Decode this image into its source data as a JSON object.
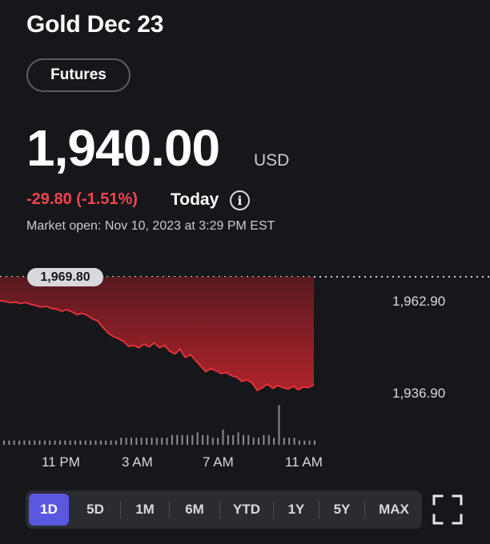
{
  "header": {
    "title": "Gold Dec 23",
    "badge": "Futures"
  },
  "quote": {
    "price": "1,940.00",
    "currency": "USD",
    "change": "-29.80 (-1.51%)",
    "period": "Today",
    "market_status": "Market open: Nov 10, 2023 at 3:29 PM EST"
  },
  "chart": {
    "prev_close_label": "1,969.80",
    "y_labels": [
      "1,962.90",
      "1,936.90"
    ],
    "x_labels": [
      "11 PM",
      "3 AM",
      "7 AM",
      "11 AM"
    ],
    "colors": {
      "line": "#e0323b",
      "volume": "#8a8d93"
    }
  },
  "chart_data": {
    "type": "area",
    "title": "",
    "reference_line": 1969.8,
    "y_ticks": [
      1962.9,
      1936.9
    ],
    "x_ticks": [
      "11 PM",
      "3 AM",
      "7 AM",
      "11 AM"
    ],
    "ylim": [
      1930,
      1972
    ],
    "series": [
      {
        "values": [
          1963.4,
          1963.2,
          1962.8,
          1963.0,
          1962.6,
          1962.9,
          1962.3,
          1962.0,
          1961.6,
          1961.8,
          1961.2,
          1961.0,
          1960.4,
          1960.8,
          1960.2,
          1959.4,
          1959.8,
          1959.2,
          1958.2,
          1957.6,
          1955.8,
          1954.2,
          1953.2,
          1952.6,
          1951.8,
          1950.4,
          1950.6,
          1950.0,
          1951.0,
          1950.2,
          1951.4,
          1950.0,
          1950.6,
          1949.0,
          1948.2,
          1949.6,
          1947.2,
          1948.0,
          1946.4,
          1944.8,
          1943.2,
          1944.0,
          1943.4,
          1942.6,
          1942.9,
          1942.0,
          1941.6,
          1940.4,
          1940.8,
          1940.0,
          1937.8,
          1938.6,
          1939.6,
          1938.4,
          1939.2,
          1938.6,
          1938.2,
          1939.0,
          1938.0,
          1938.8,
          1938.6,
          1939.4
        ]
      }
    ],
    "volume": [
      1,
      1,
      1,
      1,
      1,
      1,
      1,
      1,
      1,
      1,
      1,
      1,
      1,
      1,
      1,
      1,
      1,
      1,
      1,
      1,
      1,
      1,
      1,
      2,
      2,
      2,
      2,
      2,
      2,
      2,
      2,
      2,
      2,
      3,
      3,
      3,
      3,
      3,
      4,
      3,
      3,
      2,
      2,
      5,
      3,
      3,
      4,
      3,
      3,
      2,
      2,
      3,
      3,
      2,
      14,
      2,
      2,
      2,
      1,
      1,
      1,
      1
    ]
  },
  "range_tabs": [
    "1D",
    "5D",
    "1M",
    "6M",
    "YTD",
    "1Y",
    "5Y",
    "MAX"
  ],
  "active_tab": "1D",
  "icons": {
    "info": "info-icon",
    "expand": "fullscreen-icon"
  }
}
